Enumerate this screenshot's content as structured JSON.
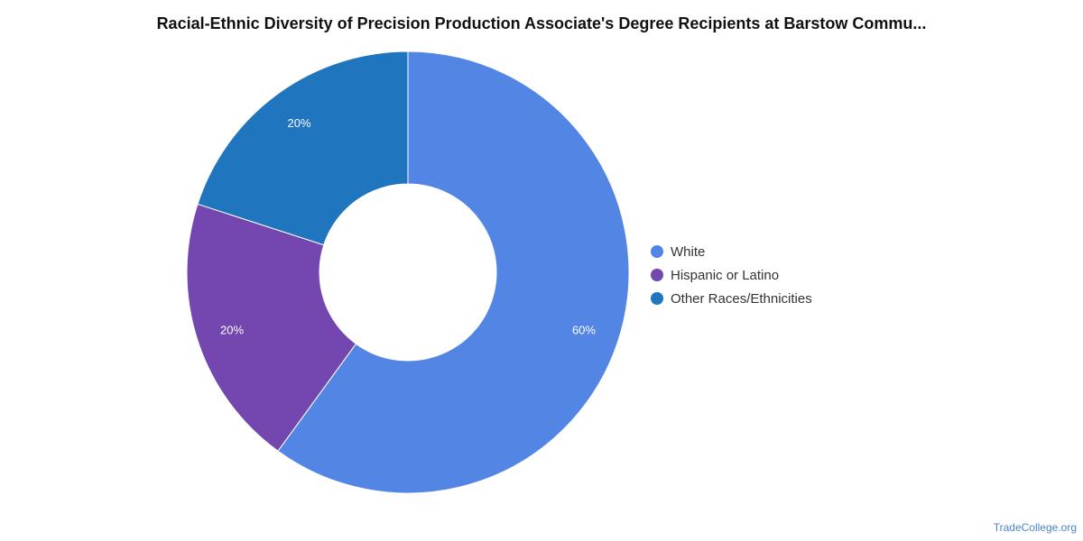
{
  "chart_data": {
    "type": "pie",
    "variant": "donut",
    "title": "Racial-Ethnic Diversity of Precision Production Associate's Degree Recipients at Barstow Commu...",
    "categories": [
      "White",
      "Hispanic or Latino",
      "Other Races/Ethnicities"
    ],
    "values": [
      60,
      20,
      20
    ],
    "labels": [
      "60%",
      "20%",
      "20%"
    ],
    "colors": [
      "#5386e4",
      "#7346b0",
      "#1f75be"
    ],
    "legend_position": "right"
  },
  "watermark": "TradeCollege.org"
}
